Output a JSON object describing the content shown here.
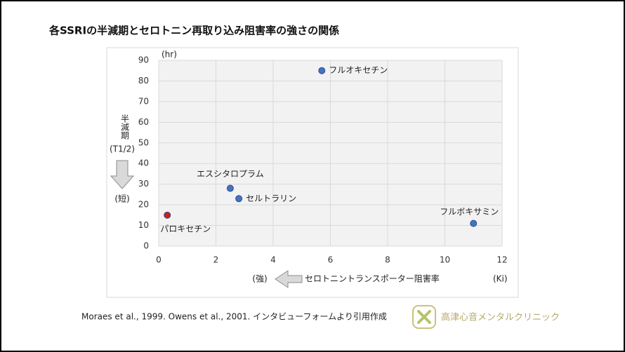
{
  "chart_data": {
    "type": "scatter",
    "title": "各SSRIの半減期とセロトニン再取り込み阻害率の強さの関係",
    "y_unit": "(hr)",
    "y_label": "半減期",
    "y_label_sub": "(T1/2)",
    "y_direction": "(短)",
    "x_direction": "(強)",
    "x_label": "セロトニントランスポーター阻害率",
    "x_unit": "(Ki)",
    "xlim": [
      0,
      12
    ],
    "xticks": [
      0,
      2,
      4,
      6,
      8,
      10,
      12
    ],
    "ylim": [
      0,
      90
    ],
    "yticks": [
      0,
      10,
      20,
      30,
      40,
      50,
      60,
      70,
      80,
      90
    ],
    "grid": true,
    "series": [
      {
        "name": "フルオキセチン",
        "color": "#4472c4",
        "x": [
          5.7
        ],
        "values": [
          85
        ]
      },
      {
        "name": "エスシタロプラム",
        "color": "#4472c4",
        "x": [
          2.5
        ],
        "values": [
          28
        ]
      },
      {
        "name": "セルトラリン",
        "color": "#4472c4",
        "x": [
          2.8
        ],
        "values": [
          23
        ]
      },
      {
        "name": "フルボキサミン",
        "color": "#4472c4",
        "x": [
          11
        ],
        "values": [
          11
        ]
      },
      {
        "name": "パロキセチン",
        "color": "#d01c1c",
        "x": [
          0.3
        ],
        "values": [
          15
        ]
      }
    ]
  },
  "footer": {
    "citation": "Moraes et al., 1999. Owens et al., 2001. インタビューフォームより引用作成",
    "logo_text": "高津心音メンタルクリニック"
  }
}
